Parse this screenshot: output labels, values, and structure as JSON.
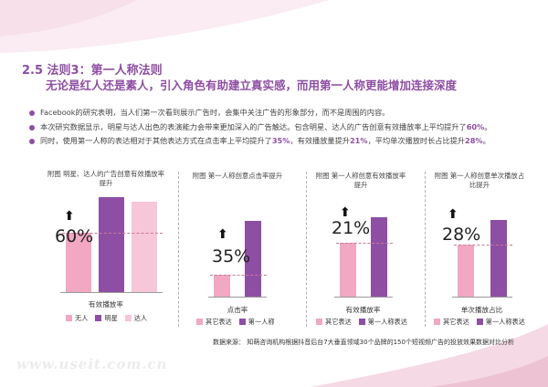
{
  "heading": "2.5  法则3：第一人称法则",
  "subheading": "无论是红人还是素人，引入角色有助建立真实感，而用第一人称更能增加连接深度",
  "bullets": [
    {
      "text": "Facebook的研究表明，当人们第一次看到展示广告时，会集中关注广告的形象部分，而不是周围的内容。",
      "parts": []
    },
    {
      "text": "本次研究数据显示，明星与达人出色的表演能力会带来更加深入的广告触达。包含明星、达人的广告创意有效播放率上平均提升了",
      "highlight": "60%",
      "tail": "。"
    },
    {
      "text": "同时，使用第一人称的表达相对于其他表达方式在点击率上平均提升了",
      "h1": "35%",
      "mid1": "，有效播放量提升",
      "h2": "21%",
      "mid2": "，平均单次播放时长占比提升",
      "h3": "28%",
      "tail": "。"
    }
  ],
  "chart_data": [
    {
      "type": "bar",
      "title": "附图   明星、达人的广告创意有效播放率提升",
      "categories": [
        "有效播放率"
      ],
      "series": [
        {
          "name": "无人",
          "values": [
            3.0
          ]
        },
        {
          "name": "明星",
          "values": [
            4.8
          ]
        },
        {
          "name": "达人",
          "values": [
            4.6
          ]
        }
      ],
      "annotation": "60%",
      "xlabel": "有效播放率",
      "ylim": [
        0,
        5
      ],
      "colors": [
        "#f2a7c3",
        "#8e4ea3",
        "#f7c6d8"
      ]
    },
    {
      "type": "bar",
      "title": "附图   第一人称创意点击率提升",
      "categories": [
        "点击率"
      ],
      "series": [
        {
          "name": "其它表达",
          "values": [
            1.0
          ]
        },
        {
          "name": "第一人称",
          "values": [
            3.5
          ]
        }
      ],
      "annotation": "35%",
      "xlabel": "点击率",
      "ylim": [
        0,
        4
      ],
      "colors": [
        "#f2a7c3",
        "#8e4ea3"
      ]
    },
    {
      "type": "bar",
      "title": "附图   第一人称创意有效播放率提升",
      "categories": [
        "有效播放率"
      ],
      "series": [
        {
          "name": "其它表达",
          "values": [
            2.8
          ]
        },
        {
          "name": "第一人称表达",
          "values": [
            4.1
          ]
        }
      ],
      "annotation": "21%",
      "xlabel": "有效播放率",
      "ylim": [
        0,
        4.5
      ],
      "colors": [
        "#f2a7c3",
        "#8e4ea3"
      ]
    },
    {
      "type": "bar",
      "title": "附图   第一人称创意单次播放占比提升",
      "categories": [
        "单次播放占比"
      ],
      "series": [
        {
          "name": "其它表达",
          "values": [
            3.0
          ]
        },
        {
          "name": "第一人称表达",
          "values": [
            4.4
          ]
        }
      ],
      "annotation": "28%",
      "xlabel": "单次播放占比",
      "ylim": [
        0,
        5
      ],
      "colors": [
        "#f2a7c3",
        "#8e4ea3"
      ]
    }
  ],
  "source": "数据来源：  知萌咨询机构根据抖音后台7大垂直领域30个品牌的150个短视频广告的投放效果数据对比分析",
  "watermark": "www.useit.com.cn",
  "colors": {
    "accent": "#8e4ea3",
    "pink": "#f2a7c3",
    "lightpink": "#f7c6d8"
  }
}
